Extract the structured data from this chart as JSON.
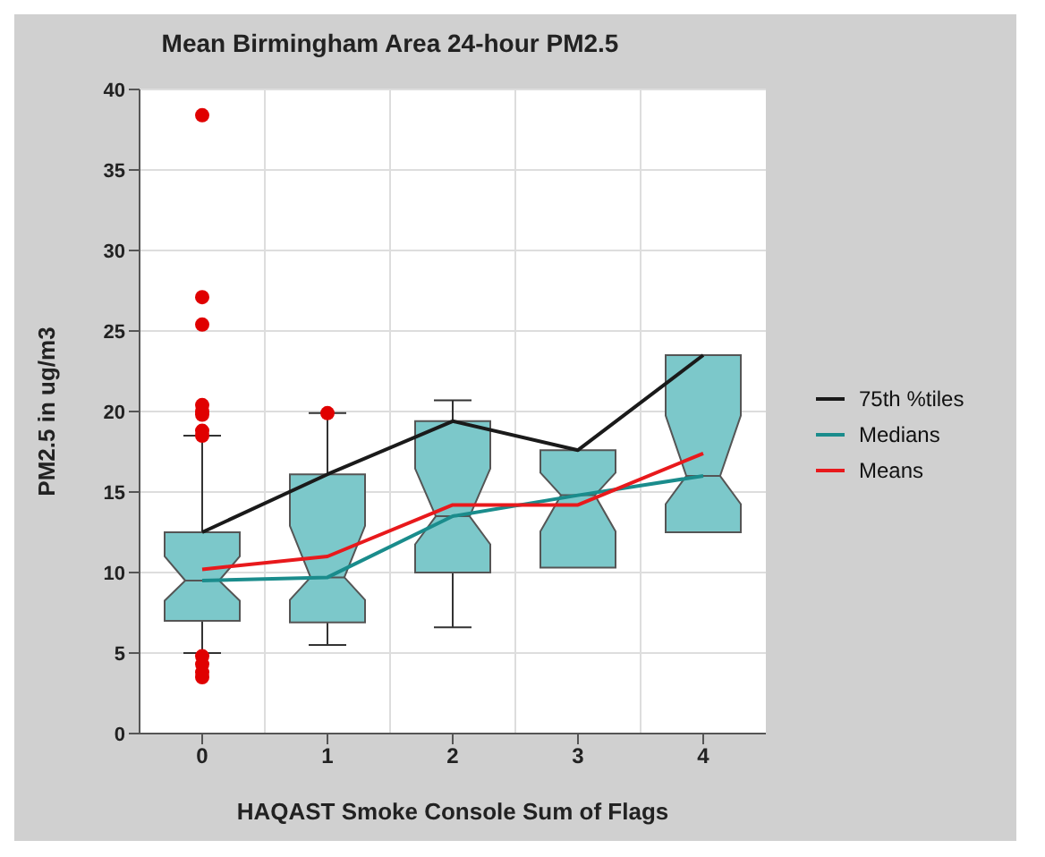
{
  "chart_data": {
    "type": "box",
    "title": "Mean Birmingham Area 24-hour PM2.5",
    "xlabel": "HAQAST Smoke Console Sum of Flags",
    "ylabel": "PM2.5 in ug/m3",
    "categories": [
      "0",
      "1",
      "2",
      "3",
      "4"
    ],
    "color": "#7cc8ca",
    "boxes": [
      {
        "low": 5.0,
        "q1": 7.0,
        "median": 9.5,
        "q3": 12.5,
        "high": 18.5,
        "outliers": [
          38.4,
          27.1,
          25.4,
          20.4,
          20.0,
          19.8,
          18.8,
          18.5,
          4.8,
          4.3,
          3.8,
          3.5
        ]
      },
      {
        "low": 5.5,
        "q1": 6.9,
        "median": 9.7,
        "q3": 16.1,
        "high": 19.9,
        "outliers": [
          19.9
        ]
      },
      {
        "low": 6.6,
        "q1": 10.0,
        "median": 13.5,
        "q3": 19.4,
        "high": 20.7
      },
      {
        "low": 10.3,
        "q1": 10.3,
        "median": 14.8,
        "q3": 17.6,
        "high": 17.6
      },
      {
        "low": 12.5,
        "q1": 12.5,
        "median": 16.0,
        "q3": 23.5,
        "high": 23.5
      }
    ],
    "series": [
      {
        "name": "75th %tiles",
        "type": "line",
        "color": "#1a1a1a",
        "x": [
          "0",
          "1",
          "2",
          "3",
          "4"
        ],
        "values": [
          12.5,
          16.1,
          19.4,
          17.6,
          23.5
        ]
      },
      {
        "name": "Medians",
        "type": "line",
        "color": "#1a8c8c",
        "x": [
          "0",
          "1",
          "2",
          "3",
          "4"
        ],
        "values": [
          9.5,
          9.7,
          13.5,
          14.8,
          16.0
        ]
      },
      {
        "name": "Means",
        "type": "line",
        "color": "#e8191c",
        "x": [
          "0",
          "1",
          "2",
          "3",
          "4"
        ],
        "values": [
          10.2,
          11.0,
          14.2,
          14.2,
          17.4
        ]
      }
    ],
    "ylim": [
      0,
      40
    ],
    "yticks": [
      0,
      5,
      10,
      15,
      20,
      25,
      30,
      35,
      40
    ],
    "grid": true,
    "legend": "right",
    "marker": "none"
  }
}
